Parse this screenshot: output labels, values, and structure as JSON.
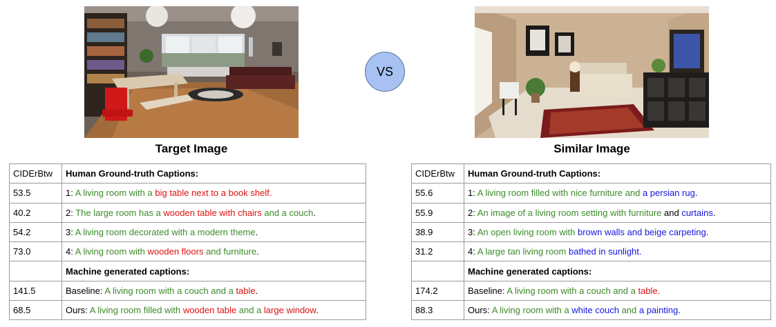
{
  "vs_label": "VS",
  "left": {
    "title": "Target Image",
    "photo_icon": "living-room-photo",
    "col_header": "CIDErBtw",
    "human_header": "Human Ground-truth Captions:",
    "machine_header": "Machine generated captions:",
    "human": [
      {
        "score": "53.5",
        "parts": [
          [
            "1: ",
            "k"
          ],
          [
            "A living room with a ",
            "g"
          ],
          [
            "big table next to a book shelf.",
            "r"
          ]
        ]
      },
      {
        "score": "40.2",
        "parts": [
          [
            "2: ",
            "k"
          ],
          [
            "The large room has a ",
            "g"
          ],
          [
            "wooden table with chairs",
            "r"
          ],
          [
            " and a couch",
            "g"
          ],
          [
            ".",
            "k"
          ]
        ]
      },
      {
        "score": "54.2",
        "parts": [
          [
            "3: ",
            "k"
          ],
          [
            "A living room decorated with a modern theme",
            "g"
          ],
          [
            ".",
            "k"
          ]
        ]
      },
      {
        "score": "73.0",
        "parts": [
          [
            "4: ",
            "k"
          ],
          [
            "A living room with ",
            "g"
          ],
          [
            "wooden floors",
            "r"
          ],
          [
            " and furniture",
            "g"
          ],
          [
            ".",
            "k"
          ]
        ]
      }
    ],
    "machine": [
      {
        "score": "141.5",
        "parts": [
          [
            "Baseline: ",
            "k"
          ],
          [
            "A living room with a couch and a ",
            "g"
          ],
          [
            "table",
            "r"
          ],
          [
            ".",
            "k"
          ]
        ]
      },
      {
        "score": "68.5",
        "parts": [
          [
            "Ours: ",
            "k"
          ],
          [
            "A living room filled with ",
            "g"
          ],
          [
            "wooden table",
            "r"
          ],
          [
            " and a ",
            "g"
          ],
          [
            "large window",
            "r"
          ],
          [
            ".",
            "k"
          ]
        ]
      }
    ]
  },
  "right": {
    "title": "Similar Image",
    "photo_icon": "living-room-photo",
    "col_header": "CIDErBtw",
    "human_header": "Human Ground-truth Captions:",
    "machine_header": "Machine generated captions:",
    "human": [
      {
        "score": "55.6",
        "parts": [
          [
            "1: ",
            "k"
          ],
          [
            "A living room filled with nice furniture and ",
            "g"
          ],
          [
            "a persian rug",
            "b"
          ],
          [
            ".",
            "k"
          ]
        ]
      },
      {
        "score": "55.9",
        "parts": [
          [
            "2: ",
            "k"
          ],
          [
            "An image of a living room setting with furniture",
            "g"
          ],
          [
            " and ",
            "k"
          ],
          [
            "curtains",
            "b"
          ],
          [
            ".",
            "k"
          ]
        ]
      },
      {
        "score": "38.9",
        "parts": [
          [
            "3: ",
            "k"
          ],
          [
            "An open living room with ",
            "g"
          ],
          [
            "brown walls and beige carpeting",
            "b"
          ],
          [
            ".",
            "k"
          ]
        ]
      },
      {
        "score": "31.2",
        "parts": [
          [
            "4: ",
            "k"
          ],
          [
            "A large tan living room ",
            "g"
          ],
          [
            "bathed in sunlight.",
            "b"
          ]
        ]
      }
    ],
    "machine": [
      {
        "score": "174.2",
        "parts": [
          [
            "Baseline: ",
            "k"
          ],
          [
            "A living room with a couch and a ",
            "g"
          ],
          [
            "table.",
            "r"
          ]
        ]
      },
      {
        "score": "88.3",
        "parts": [
          [
            "Ours: ",
            "k"
          ],
          [
            "A living room with a ",
            "g"
          ],
          [
            "white couch",
            "b"
          ],
          [
            " and ",
            "g"
          ],
          [
            "a painting",
            "b"
          ],
          [
            ".",
            "k"
          ]
        ]
      }
    ]
  }
}
